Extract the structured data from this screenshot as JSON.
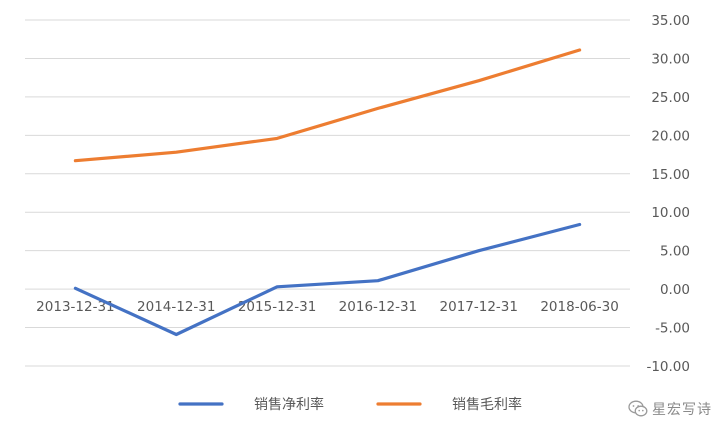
{
  "chart_data": {
    "type": "line",
    "categories": [
      "2013-12-31",
      "2014-12-31",
      "2015-12-31",
      "2016-12-31",
      "2017-12-31",
      "2018-06-30"
    ],
    "series": [
      {
        "name": "销售净利率",
        "color": "#4472c4",
        "values": [
          0.1,
          -5.9,
          0.3,
          1.1,
          5.0,
          8.4
        ]
      },
      {
        "name": "销售毛利率",
        "color": "#ed7d31",
        "values": [
          16.7,
          17.8,
          19.6,
          23.5,
          27.1,
          31.1
        ]
      }
    ],
    "ylim": [
      -10,
      35
    ],
    "yticks": [
      "35.00",
      "30.00",
      "25.00",
      "20.00",
      "15.00",
      "10.00",
      "5.00",
      "0.00",
      "-5.00",
      "-10.00"
    ],
    "ytick_values": [
      35,
      30,
      25,
      20,
      15,
      10,
      5,
      0,
      -5,
      -10
    ],
    "y_axis_side": "right",
    "grid": true,
    "legend_position": "bottom"
  },
  "watermark": {
    "text": "星宏写诗",
    "icon": "wechat-icon"
  }
}
